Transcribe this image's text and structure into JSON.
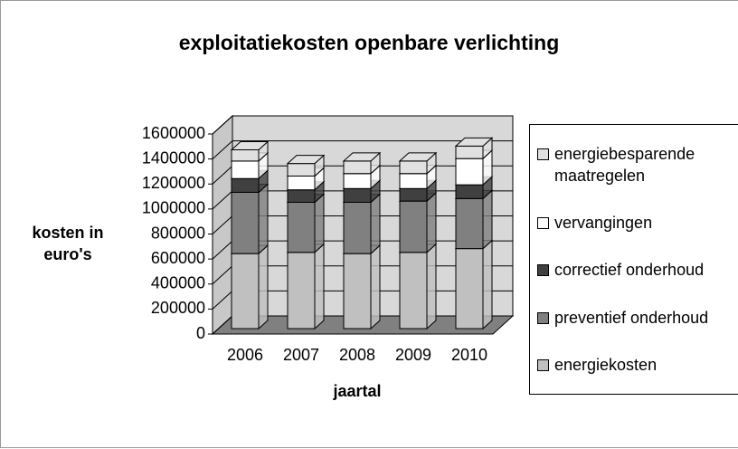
{
  "chart_data": {
    "type": "bar",
    "stacked": true,
    "title": "exploitatiekosten openbare verlichting",
    "xlabel": "jaartal",
    "ylabel": "kosten in euro's",
    "categories": [
      "2006",
      "2007",
      "2008",
      "2009",
      "2010"
    ],
    "series": [
      {
        "name": "energiekosten",
        "color": "#c0c0c0",
        "values": [
          600000,
          610000,
          600000,
          610000,
          640000
        ]
      },
      {
        "name": "preventief onderhoud",
        "color": "#808080",
        "values": [
          490000,
          400000,
          410000,
          410000,
          400000
        ]
      },
      {
        "name": "correctief onderhoud",
        "color": "#404040",
        "values": [
          110000,
          100000,
          110000,
          100000,
          110000
        ]
      },
      {
        "name": "vervangingen",
        "color": "#ffffff",
        "values": [
          140000,
          110000,
          120000,
          120000,
          210000
        ]
      },
      {
        "name": "energiebesparende maatregelen",
        "color": "#e0e0e0",
        "values": [
          90000,
          100000,
          100000,
          100000,
          100000
        ]
      }
    ],
    "ylim": [
      0,
      1600000
    ],
    "yticks": [
      0,
      200000,
      400000,
      600000,
      800000,
      1000000,
      1200000,
      1400000,
      1600000
    ],
    "grid": true
  }
}
